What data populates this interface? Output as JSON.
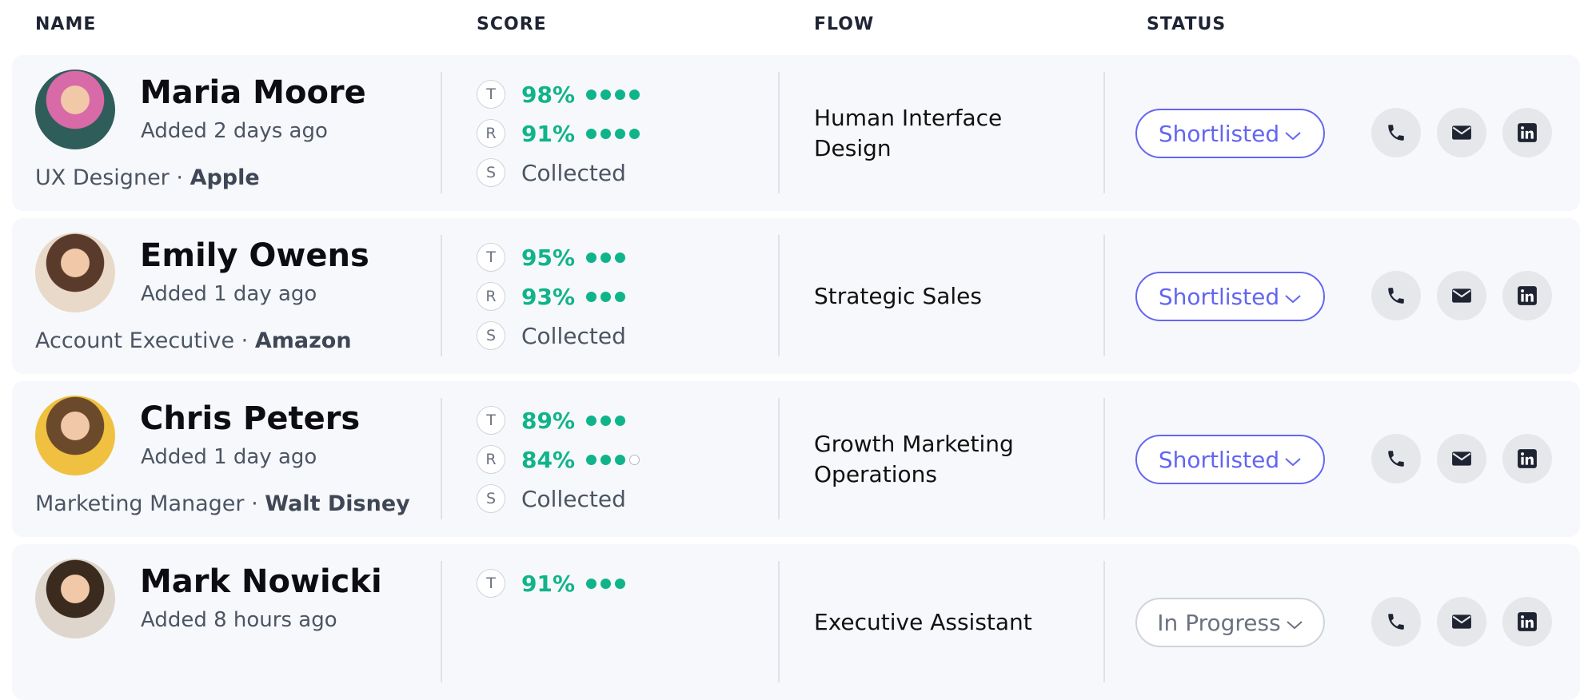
{
  "header": {
    "columns": [
      "NAME",
      "SCORE",
      "FLOW",
      "STATUS"
    ]
  },
  "separator": "·",
  "rows": [
    {
      "name": "Maria Moore",
      "added": "Added 2 days ago",
      "title": "UX Designer",
      "company": "Apple",
      "scores": [
        {
          "letter": "T",
          "text": "98%",
          "dots": {
            "filled": 4,
            "empty": 0
          }
        },
        {
          "letter": "R",
          "text": "91%",
          "dots": {
            "filled": 4,
            "empty": 0
          }
        },
        {
          "letter": "S",
          "text": "Collected"
        }
      ],
      "flow": [
        "Human Interface",
        "Design"
      ],
      "status": "Shortlisted"
    },
    {
      "name": "Emily Owens",
      "added": "Added 1 day ago",
      "title": "Account Executive",
      "company": "Amazon",
      "scores": [
        {
          "letter": "T",
          "text": "95%",
          "dots": {
            "filled": 3,
            "empty": 0
          }
        },
        {
          "letter": "R",
          "text": "93%",
          "dots": {
            "filled": 3,
            "empty": 0
          }
        },
        {
          "letter": "S",
          "text": "Collected"
        }
      ],
      "flow": [
        "Strategic Sales"
      ],
      "status": "Shortlisted"
    },
    {
      "name": "Chris Peters",
      "added": "Added 1 day ago",
      "title": "Marketing Manager",
      "company": "Walt Disney",
      "scores": [
        {
          "letter": "T",
          "text": "89%",
          "dots": {
            "filled": 3,
            "empty": 0
          }
        },
        {
          "letter": "R",
          "text": "84%",
          "dots": {
            "filled": 3,
            "empty": 1
          }
        },
        {
          "letter": "S",
          "text": "Collected"
        }
      ],
      "flow": [
        "Growth Marketing",
        "Operations"
      ],
      "status": "Shortlisted"
    },
    {
      "name": "Mark Nowicki",
      "added": "Added 8 hours ago",
      "scores": [
        {
          "letter": "T",
          "text": "91%",
          "dots": {
            "filled": 3,
            "empty": 0
          }
        }
      ],
      "flow": [
        "Executive Assistant"
      ],
      "status": "In Progress"
    }
  ]
}
